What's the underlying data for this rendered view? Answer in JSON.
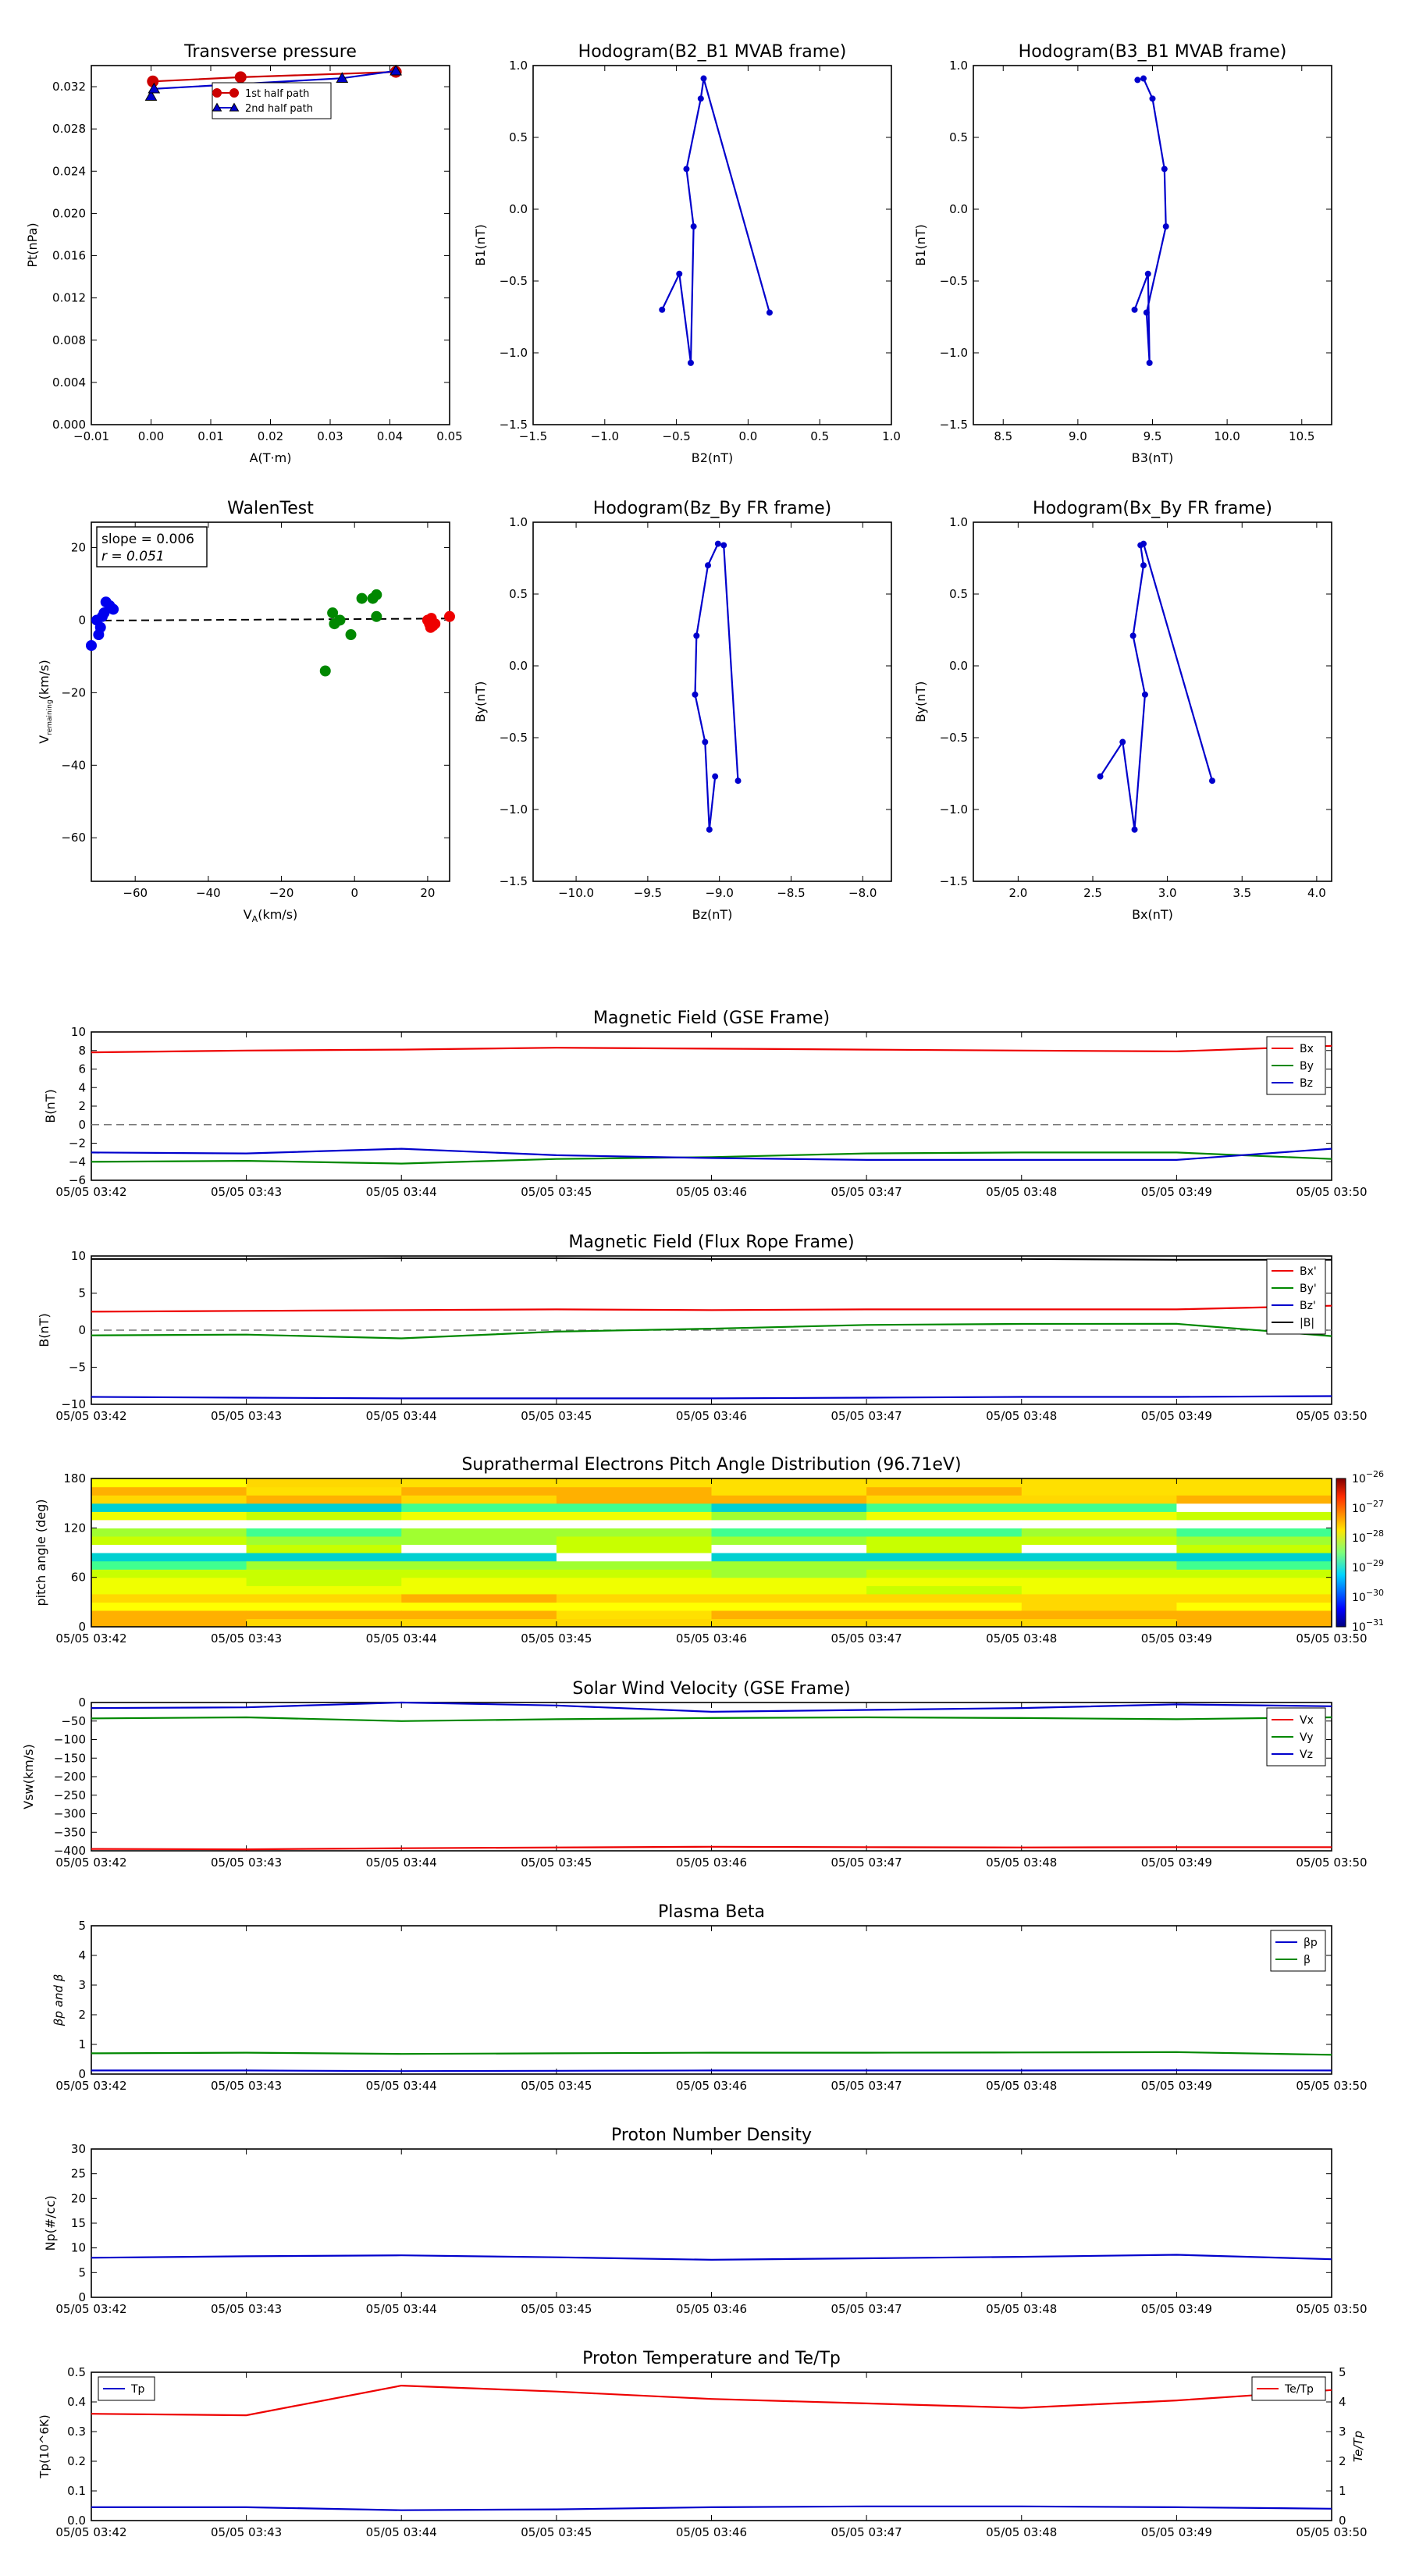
{
  "chart_data": [
    {
      "id": "pt",
      "type": "line",
      "title": "Transverse pressure",
      "xlabel": "A(T·m)",
      "ylabel": "Pt(nPa)",
      "xlim": [
        -0.01,
        0.05
      ],
      "ylim": [
        0.0,
        0.034
      ],
      "xticks": [
        -0.01,
        0.0,
        0.01,
        0.02,
        0.03,
        0.04,
        0.05
      ],
      "xtick_labels": [
        "−0.01",
        "0.00",
        "0.01",
        "0.02",
        "0.03",
        "0.04",
        "0.05"
      ],
      "yticks": [
        0.0,
        0.004,
        0.008,
        0.012,
        0.016,
        0.02,
        0.024,
        0.028,
        0.032
      ],
      "ytick_labels": [
        "0.000",
        "0.004",
        "0.008",
        "0.012",
        "0.016",
        "0.020",
        "0.024",
        "0.028",
        "0.032"
      ],
      "legend_position": "top-center",
      "series": [
        {
          "name": "1st half path",
          "color": "#cc0000",
          "marker": "circle",
          "x": [
            0.0003,
            0.015,
            0.041
          ],
          "y": [
            0.0325,
            0.0329,
            0.0334
          ]
        },
        {
          "name": "2nd half path",
          "color": "#0000cc",
          "marker": "triangle",
          "x": [
            0.0,
            0.0005,
            0.032,
            0.041
          ],
          "y": [
            0.0311,
            0.0318,
            0.0328,
            0.0335
          ]
        }
      ]
    },
    {
      "id": "h21",
      "type": "line",
      "title": "Hodogram(B2_B1 MVAB frame)",
      "xlabel": "B2(nT)",
      "ylabel": "B1(nT)",
      "xlim": [
        -1.5,
        1.0
      ],
      "ylim": [
        -1.5,
        1.0
      ],
      "xticks": [
        -1.5,
        -1.0,
        -0.5,
        0.0,
        0.5,
        1.0
      ],
      "xtick_labels": [
        "−1.5",
        "−1.0",
        "−0.5",
        "0.0",
        "0.5",
        "1.0"
      ],
      "yticks": [
        -1.5,
        -1.0,
        -0.5,
        0.0,
        0.5,
        1.0
      ],
      "ytick_labels": [
        "−1.5",
        "−1.0",
        "−0.5",
        "0.0",
        "0.5",
        "1.0"
      ],
      "series": [
        {
          "color": "#0000cc",
          "x": [
            -0.6,
            -0.48,
            -0.4,
            -0.38,
            -0.43,
            -0.33,
            -0.31,
            0.15
          ],
          "y": [
            -0.7,
            -0.45,
            -1.07,
            -0.12,
            0.28,
            0.77,
            0.91,
            -0.72
          ]
        }
      ]
    },
    {
      "id": "h31",
      "type": "line",
      "title": "Hodogram(B3_B1 MVAB frame)",
      "xlabel": "B3(nT)",
      "ylabel": "B1(nT)",
      "xlim": [
        8.3,
        10.7
      ],
      "ylim": [
        -1.5,
        1.0
      ],
      "xticks": [
        8.5,
        9.0,
        9.5,
        10.0,
        10.5
      ],
      "xtick_labels": [
        "8.5",
        "9.0",
        "9.5",
        "10.0",
        "10.5"
      ],
      "yticks": [
        -1.5,
        -1.0,
        -0.5,
        0.0,
        0.5,
        1.0
      ],
      "ytick_labels": [
        "−1.5",
        "−1.0",
        "−0.5",
        "0.0",
        "0.5",
        "1.0"
      ],
      "series": [
        {
          "color": "#0000cc",
          "x": [
            9.38,
            9.47,
            9.48,
            9.46,
            9.59,
            9.58,
            9.5,
            9.44,
            9.4
          ],
          "y": [
            -0.7,
            -0.45,
            -1.07,
            -0.72,
            -0.12,
            0.28,
            0.77,
            0.91,
            0.9
          ]
        }
      ]
    },
    {
      "id": "walen",
      "type": "scatter",
      "title": "WalenTest",
      "xlabel": "V_A(km/s)",
      "ylabel": "V_remaining(km/s)",
      "xlim": [
        -72,
        26
      ],
      "ylim": [
        -72,
        27
      ],
      "xticks": [
        -60,
        -40,
        -20,
        0,
        20
      ],
      "xtick_labels": [
        "−60",
        "−40",
        "−20",
        "0",
        "20"
      ],
      "yticks": [
        -60,
        -40,
        -20,
        0,
        20
      ],
      "ytick_labels": [
        "−60",
        "−40",
        "−20",
        "0",
        "20"
      ],
      "annotation": {
        "slope": "slope = 0.006",
        "r": "r = 0.051"
      },
      "fit_line": {
        "slope": 0.006,
        "intercept": 0.3
      },
      "series": [
        {
          "color": "#0000ee",
          "x": [
            -72,
            -70,
            -69.5,
            -69,
            -68.5,
            -68,
            -67,
            -66,
            -70.5
          ],
          "y": [
            -7,
            -4,
            -2,
            1,
            2,
            5,
            4,
            3,
            0
          ]
        },
        {
          "color": "#008800",
          "x": [
            -8,
            -6,
            -5.5,
            -4,
            -1,
            2,
            5,
            6,
            6
          ],
          "y": [
            -14,
            2,
            -1,
            0,
            -4,
            6,
            6,
            7,
            1
          ]
        },
        {
          "color": "#ee0000",
          "x": [
            20,
            20.5,
            21,
            21.5,
            22,
            20.8,
            26
          ],
          "y": [
            0,
            -1,
            0.5,
            -1.5,
            -1,
            -2,
            1
          ]
        }
      ]
    },
    {
      "id": "hzy",
      "type": "line",
      "title": "Hodogram(Bz_By FR frame)",
      "xlabel": "Bz(nT)",
      "ylabel": "By(nT)",
      "xlim": [
        -10.3,
        -7.8
      ],
      "ylim": [
        -1.5,
        1.0
      ],
      "xticks": [
        -10.0,
        -9.5,
        -9.0,
        -8.5,
        -8.0
      ],
      "xtick_labels": [
        "−10.0",
        "−9.5",
        "−9.0",
        "−8.5",
        "−8.0"
      ],
      "yticks": [
        -1.5,
        -1.0,
        -0.5,
        0.0,
        0.5,
        1.0
      ],
      "ytick_labels": [
        "−1.5",
        "−1.0",
        "−0.5",
        "0.0",
        "0.5",
        "1.0"
      ],
      "series": [
        {
          "color": "#0000cc",
          "x": [
            -9.03,
            -9.07,
            -9.1,
            -9.17,
            -9.16,
            -9.08,
            -9.01,
            -8.97,
            -8.87
          ],
          "y": [
            -0.77,
            -1.14,
            -0.53,
            -0.2,
            0.21,
            0.7,
            0.85,
            0.84,
            -0.8
          ]
        }
      ]
    },
    {
      "id": "hxy",
      "type": "line",
      "title": "Hodogram(Bx_By FR frame)",
      "xlabel": "Bx(nT)",
      "ylabel": "By(nT)",
      "xlim": [
        1.7,
        4.1
      ],
      "ylim": [
        -1.5,
        1.0
      ],
      "xticks": [
        2.0,
        2.5,
        3.0,
        3.5,
        4.0
      ],
      "xtick_labels": [
        "2.0",
        "2.5",
        "3.0",
        "3.5",
        "4.0"
      ],
      "yticks": [
        -1.5,
        -1.0,
        -0.5,
        0.0,
        0.5,
        1.0
      ],
      "ytick_labels": [
        "−1.5",
        "−1.0",
        "−0.5",
        "0.0",
        "0.5",
        "1.0"
      ],
      "series": [
        {
          "color": "#0000cc",
          "x": [
            2.55,
            2.7,
            2.78,
            2.85,
            2.77,
            2.84,
            2.82,
            2.84,
            3.3
          ],
          "y": [
            -0.77,
            -0.53,
            -1.14,
            -0.2,
            0.21,
            0.7,
            0.84,
            0.85,
            -0.8
          ]
        }
      ]
    },
    {
      "id": "bgse",
      "type": "line",
      "title": "Magnetic Field (GSE Frame)",
      "ylabel": "B(nT)",
      "ylim": [
        -6,
        10
      ],
      "yticks": [
        -6,
        -4,
        -2,
        0,
        2,
        4,
        6,
        8,
        10
      ],
      "ytick_labels": [
        "−6",
        "−4",
        "−2",
        "0",
        "2",
        "4",
        "6",
        "8",
        "10"
      ],
      "zero_dashed": true,
      "legend_position": "top-right",
      "x": [
        "03:42",
        "03:43",
        "03:44",
        "03:45",
        "03:46",
        "03:47",
        "03:48",
        "03:49",
        "03:50"
      ],
      "series": [
        {
          "name": "Bx",
          "color": "#ee0000",
          "values": [
            7.8,
            8.0,
            8.1,
            8.3,
            8.2,
            8.1,
            8.0,
            7.9,
            8.5
          ]
        },
        {
          "name": "By",
          "color": "#008800",
          "values": [
            -4.0,
            -3.9,
            -4.2,
            -3.7,
            -3.5,
            -3.1,
            -3.0,
            -3.0,
            -3.7
          ]
        },
        {
          "name": "Bz",
          "color": "#0000cc",
          "values": [
            -3.0,
            -3.1,
            -2.6,
            -3.3,
            -3.6,
            -3.8,
            -3.8,
            -3.8,
            -2.6
          ]
        }
      ]
    },
    {
      "id": "bfr",
      "type": "line",
      "title": "Magnetic Field (Flux Rope Frame)",
      "ylabel": "B(nT)",
      "ylim": [
        -10,
        10
      ],
      "yticks": [
        -10,
        -5,
        0,
        5,
        10
      ],
      "ytick_labels": [
        "−10",
        "−5",
        "0",
        "5",
        "10"
      ],
      "zero_dashed": true,
      "legend_position": "top-right",
      "x": [
        "03:42",
        "03:43",
        "03:44",
        "03:45",
        "03:46",
        "03:47",
        "03:48",
        "03:49",
        "03:50"
      ],
      "series": [
        {
          "name": "Bx'",
          "color": "#ee0000",
          "values": [
            2.5,
            2.6,
            2.7,
            2.8,
            2.7,
            2.8,
            2.8,
            2.8,
            3.3
          ]
        },
        {
          "name": "By'",
          "color": "#008800",
          "values": [
            -0.7,
            -0.6,
            -1.1,
            -0.2,
            0.2,
            0.7,
            0.84,
            0.85,
            -0.8
          ]
        },
        {
          "name": "Bz'",
          "color": "#0000cc",
          "values": [
            -9.0,
            -9.1,
            -9.2,
            -9.2,
            -9.2,
            -9.1,
            -9.0,
            -9.0,
            -8.9
          ]
        },
        {
          "name": "|B|",
          "color": "#000000",
          "values": [
            9.6,
            9.6,
            9.7,
            9.7,
            9.6,
            9.6,
            9.6,
            9.5,
            9.5
          ]
        }
      ]
    },
    {
      "id": "pad",
      "type": "heatmap",
      "title": "Suprathermal Electrons Pitch Angle Distribution (96.71eV)",
      "ylabel": "pitch angle (deg)",
      "ylim": [
        0,
        180
      ],
      "yticks": [
        0,
        60,
        120,
        180
      ],
      "ytick_labels": [
        "0",
        "60",
        "120",
        "180"
      ],
      "colorbar_ticks": [
        "10^-26",
        "10^-27",
        "10^-28",
        "10^-29",
        "10^-30",
        "10^-31"
      ],
      "x": [
        "03:42",
        "03:43",
        "03:44",
        "03:45",
        "03:46",
        "03:47",
        "03:48",
        "03:49",
        "03:50"
      ]
    },
    {
      "id": "vsw",
      "type": "line",
      "title": "Solar Wind Velocity (GSE Frame)",
      "ylabel": "Vsw(km/s)",
      "ylim": [
        -400,
        0
      ],
      "yticks": [
        -400,
        -350,
        -300,
        -250,
        -200,
        -150,
        -100,
        -50,
        0
      ],
      "ytick_labels": [
        "−400",
        "−350",
        "−300",
        "−250",
        "−200",
        "−150",
        "−100",
        "−50",
        "0"
      ],
      "legend_position": "right",
      "x": [
        "03:42",
        "03:43",
        "03:44",
        "03:45",
        "03:46",
        "03:47",
        "03:48",
        "03:49",
        "03:50"
      ],
      "series": [
        {
          "name": "Vx",
          "color": "#ee0000",
          "values": [
            -395,
            -396,
            -393,
            -391,
            -389,
            -390,
            -391,
            -390,
            -390
          ]
        },
        {
          "name": "Vy",
          "color": "#008800",
          "values": [
            -43,
            -40,
            -50,
            -45,
            -42,
            -40,
            -42,
            -45,
            -40
          ]
        },
        {
          "name": "Vz",
          "color": "#0000cc",
          "values": [
            -15,
            -13,
            0,
            -8,
            -25,
            -20,
            -15,
            -5,
            -10
          ]
        }
      ]
    },
    {
      "id": "beta",
      "type": "line",
      "title": "Plasma Beta",
      "ylabel": "βp and β",
      "ylim": [
        0,
        5
      ],
      "yticks": [
        0,
        1,
        2,
        3,
        4,
        5
      ],
      "ytick_labels": [
        "0",
        "1",
        "2",
        "3",
        "4",
        "5"
      ],
      "legend_position": "top-right",
      "x": [
        "03:42",
        "03:43",
        "03:44",
        "03:45",
        "03:46",
        "03:47",
        "03:48",
        "03:49",
        "03:50"
      ],
      "series": [
        {
          "name": "βp",
          "color": "#0000cc",
          "values": [
            0.12,
            0.12,
            0.1,
            0.11,
            0.12,
            0.12,
            0.12,
            0.13,
            0.12
          ]
        },
        {
          "name": "β",
          "color": "#008800",
          "values": [
            0.7,
            0.72,
            0.68,
            0.7,
            0.72,
            0.72,
            0.73,
            0.74,
            0.65
          ]
        }
      ]
    },
    {
      "id": "np",
      "type": "line",
      "title": "Proton Number Density",
      "ylabel": "Np(#/cc)",
      "ylim": [
        0,
        30
      ],
      "yticks": [
        0,
        5,
        10,
        15,
        20,
        25,
        30
      ],
      "ytick_labels": [
        "0",
        "5",
        "10",
        "15",
        "20",
        "25",
        "30"
      ],
      "x": [
        "03:42",
        "03:43",
        "03:44",
        "03:45",
        "03:46",
        "03:47",
        "03:48",
        "03:49",
        "03:50"
      ],
      "series": [
        {
          "color": "#0000cc",
          "values": [
            8.0,
            8.3,
            8.5,
            8.1,
            7.6,
            7.9,
            8.2,
            8.6,
            7.7
          ]
        }
      ]
    },
    {
      "id": "tp",
      "type": "line",
      "title": "Proton Temperature and Te/Tp",
      "ylabel": "Tp(10^6K)",
      "ylabel_right": "Te/Tp",
      "ylim": [
        0,
        0.5
      ],
      "ylim_right": [
        0,
        5
      ],
      "yticks": [
        0,
        0.1,
        0.2,
        0.3,
        0.4,
        0.5
      ],
      "ytick_labels": [
        "0.0",
        "0.1",
        "0.2",
        "0.3",
        "0.4",
        "0.5"
      ],
      "yticks_right": [
        0,
        1,
        2,
        3,
        4,
        5
      ],
      "ytick_labels_right": [
        "0",
        "1",
        "2",
        "3",
        "4",
        "5"
      ],
      "x": [
        "03:42",
        "03:43",
        "03:44",
        "03:45",
        "03:46",
        "03:47",
        "03:48",
        "03:49",
        "03:50"
      ],
      "series": [
        {
          "name": "Tp",
          "color": "#0000cc",
          "axis": "left",
          "values": [
            0.045,
            0.045,
            0.035,
            0.038,
            0.045,
            0.048,
            0.048,
            0.045,
            0.04
          ]
        },
        {
          "name": "Te/Tp",
          "color": "#ee0000",
          "axis": "right",
          "values": [
            3.6,
            3.55,
            4.55,
            4.35,
            4.1,
            3.95,
            3.8,
            4.05,
            4.4
          ]
        }
      ]
    }
  ],
  "time_tick_labels": [
    "05/05 03:42",
    "05/05 03:43",
    "05/05 03:44",
    "05/05 03:45",
    "05/05 03:46",
    "05/05 03:47",
    "05/05 03:48",
    "05/05 03:49",
    "05/05 03:50"
  ]
}
